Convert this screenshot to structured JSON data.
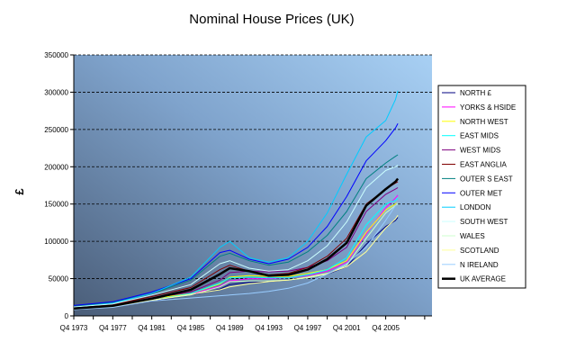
{
  "chart_data": {
    "type": "line",
    "title": "Nominal House Prices (UK)",
    "ylabel": "£",
    "xlabel": "",
    "ylim": [
      0,
      350000
    ],
    "yticks": [
      0,
      50000,
      100000,
      150000,
      200000,
      250000,
      300000,
      350000
    ],
    "ytick_labels": [
      "0",
      "50000",
      "100000",
      "150000",
      "200000",
      "250000",
      "300000",
      "350000"
    ],
    "xlim": [
      1973.75,
      2010.5
    ],
    "xticks": [
      1973.75,
      1977.75,
      1981.75,
      1985.75,
      1989.75,
      1993.75,
      1997.75,
      2001.75,
      2005.75
    ],
    "xtick_labels": [
      "Q4 1973",
      "Q4 1977",
      "Q4 1981",
      "Q4 1985",
      "Q4 1989",
      "Q4 1993",
      "Q4 1997",
      "Q4 2001",
      "Q4 2005"
    ],
    "grid": "horizontal dashed",
    "legend_position": "right",
    "x": [
      1973.75,
      1977.75,
      1981.75,
      1985.75,
      1988.75,
      1989.75,
      1991.75,
      1993.75,
      1995.75,
      1997.75,
      1999.75,
      2001.75,
      2003.75,
      2005.75,
      2006.75,
      2007.0
    ],
    "series": [
      {
        "name": "NORTH £",
        "color": "#000080",
        "width": 1,
        "values": [
          9000,
          12000,
          20000,
          28000,
          36000,
          42000,
          45000,
          46000,
          48000,
          51000,
          56000,
          66000,
          96000,
          120000,
          128000,
          132000
        ]
      },
      {
        "name": "YORKS & HSIDE",
        "color": "#ff00ff",
        "width": 1,
        "values": [
          9500,
          12500,
          21000,
          29000,
          40000,
          47000,
          50000,
          50000,
          51000,
          54000,
          60000,
          72000,
          110000,
          145000,
          158000,
          162000
        ]
      },
      {
        "name": "NORTH WEST",
        "color": "#ffff00",
        "width": 1,
        "values": [
          10000,
          13500,
          23000,
          30000,
          43000,
          52000,
          54000,
          53000,
          53000,
          57000,
          62000,
          74000,
          112000,
          142000,
          150000,
          152000
        ]
      },
      {
        "name": "EAST MIDS",
        "color": "#00ffff",
        "width": 1,
        "values": [
          9500,
          12500,
          21000,
          30000,
          44000,
          51000,
          52000,
          51000,
          51000,
          55000,
          62000,
          78000,
          122000,
          150000,
          155000,
          158000
        ]
      },
      {
        "name": "WEST MIDS",
        "color": "#800080",
        "width": 1,
        "values": [
          10500,
          14000,
          24000,
          32000,
          48000,
          58000,
          60000,
          59000,
          60000,
          65000,
          74000,
          92000,
          140000,
          163000,
          170000,
          172000
        ]
      },
      {
        "name": "EAST ANGLIA",
        "color": "#800000",
        "width": 1,
        "values": [
          11500,
          15000,
          26000,
          38000,
          62000,
          68000,
          60000,
          55000,
          57000,
          65000,
          80000,
          104000,
          150000,
          170000,
          178000,
          180000
        ]
      },
      {
        "name": "OUTER S EAST",
        "color": "#008080",
        "width": 1,
        "values": [
          13500,
          18000,
          30000,
          48000,
          80000,
          84000,
          74000,
          68000,
          72000,
          86000,
          108000,
          140000,
          184000,
          205000,
          214000,
          216000
        ]
      },
      {
        "name": "OUTER MET",
        "color": "#0000ff",
        "width": 1,
        "values": [
          14000,
          19000,
          32000,
          50000,
          85000,
          88000,
          76000,
          70000,
          76000,
          92000,
          120000,
          160000,
          208000,
          235000,
          252000,
          258000
        ]
      },
      {
        "name": "LONDON",
        "color": "#00ccff",
        "width": 1,
        "values": [
          12000,
          17000,
          30000,
          52000,
          92000,
          100000,
          78000,
          72000,
          78000,
          100000,
          138000,
          190000,
          240000,
          262000,
          290000,
          302000
        ]
      },
      {
        "name": "SOUTH WEST",
        "color": "#ccffff",
        "width": 1,
        "values": [
          12000,
          16000,
          28000,
          42000,
          70000,
          74000,
          64000,
          60000,
          62000,
          74000,
          94000,
          126000,
          172000,
          195000,
          200000,
          202000
        ]
      },
      {
        "name": "WALES",
        "color": "#ccffcc",
        "width": 1,
        "values": [
          9500,
          12500,
          21000,
          28000,
          39000,
          46000,
          47000,
          47000,
          48000,
          51000,
          56000,
          68000,
          104000,
          138000,
          148000,
          150000
        ]
      },
      {
        "name": "SCOTLAND",
        "color": "#ffff99",
        "width": 1,
        "values": [
          9500,
          12000,
          21000,
          29000,
          35000,
          39000,
          43000,
          46000,
          48000,
          52000,
          57000,
          66000,
          86000,
          118000,
          130000,
          135000
        ]
      },
      {
        "name": "N IRELAND",
        "color": "#99ccff",
        "width": 1,
        "values": [
          8500,
          11500,
          20000,
          24000,
          27000,
          28000,
          30000,
          33000,
          37000,
          44000,
          56000,
          70000,
          92000,
          128000,
          148000,
          152000
        ]
      },
      {
        "name": "UK AVERAGE",
        "color": "#000000",
        "width": 2.5,
        "values": [
          10000,
          13500,
          23000,
          35000,
          56000,
          64000,
          60000,
          54000,
          55000,
          62000,
          76000,
          98000,
          148000,
          170000,
          180000,
          184000
        ]
      }
    ]
  }
}
